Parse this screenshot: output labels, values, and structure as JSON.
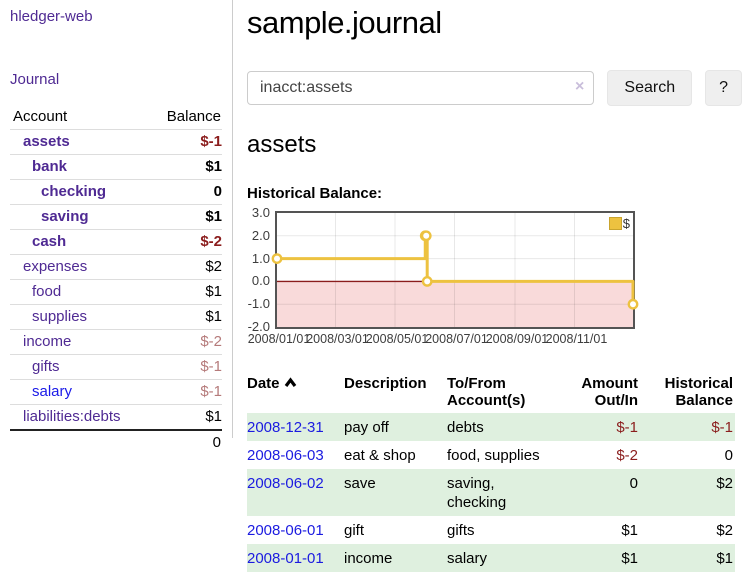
{
  "colors": {
    "link_purple": "#4f2a93",
    "link_blue": "#1a1ae8",
    "negative_red": "#8b1d1d",
    "muted_negative_rose": "#b57a7a",
    "row_stripe_green": "#dff0df",
    "chart_line_gold": "#edc240",
    "chart_negative_fill_pink": "#f9dada",
    "chart_zero_line_red": "#8b1d1d",
    "chart_border_gray": "#545454",
    "button_gray": "#efefef"
  },
  "sidebar": {
    "app_title": "hledger-web",
    "journal_link": "Journal",
    "accounts": {
      "headers": {
        "account": "Account",
        "balance": "Balance"
      },
      "rows": [
        {
          "name": "assets",
          "balance": "$-1",
          "indent": 1,
          "in_query": true,
          "balance_tone": "negative"
        },
        {
          "name": "bank",
          "balance": "$1",
          "indent": 2,
          "in_query": true,
          "balance_tone": "normal"
        },
        {
          "name": "checking",
          "balance": "0",
          "indent": 3,
          "in_query": true,
          "balance_tone": "normal"
        },
        {
          "name": "saving",
          "balance": "$1",
          "indent": 3,
          "in_query": true,
          "balance_tone": "normal"
        },
        {
          "name": "cash",
          "balance": "$-2",
          "indent": 2,
          "in_query": true,
          "balance_tone": "negative"
        },
        {
          "name": "expenses",
          "balance": "$2",
          "indent": 1,
          "in_query": false,
          "balance_tone": "normal"
        },
        {
          "name": "food",
          "balance": "$1",
          "indent": 2,
          "in_query": false,
          "balance_tone": "normal"
        },
        {
          "name": "supplies",
          "balance": "$1",
          "indent": 2,
          "in_query": false,
          "balance_tone": "normal"
        },
        {
          "name": "income",
          "balance": "$-2",
          "indent": 1,
          "in_query": false,
          "balance_tone": "muted-negative"
        },
        {
          "name": "gifts",
          "balance": "$-1",
          "indent": 2,
          "in_query": false,
          "balance_tone": "muted-negative"
        },
        {
          "name": "salary",
          "balance": "$-1",
          "indent": 2,
          "in_query": false,
          "balance_tone": "muted-negative",
          "link_tone": "unvisited"
        },
        {
          "name": "liabilities:debts",
          "balance": "$1",
          "indent": 1,
          "in_query": false,
          "balance_tone": "normal"
        }
      ],
      "total": "0"
    }
  },
  "main": {
    "title": "sample.journal",
    "search": {
      "value": "inacct:assets",
      "clear_icon": "×",
      "search_label": "Search",
      "help_label": "?"
    },
    "account_heading": "assets"
  },
  "chart_data": {
    "type": "line",
    "step": true,
    "title": "Historical Balance:",
    "legend": "$",
    "legend_position": "top-right",
    "grid": true,
    "negative_region_shaded": true,
    "x_start": "2008-01-01",
    "x_end": "2008-12-31",
    "ylim": [
      -2,
      3
    ],
    "y_ticks": [
      "3.0",
      "2.0",
      "1.0",
      "0.0",
      "-1.0",
      "-2.0"
    ],
    "x_ticks": [
      {
        "label": "2008/01/01",
        "date": "2008-01-01"
      },
      {
        "label": "2008/03/01",
        "date": "2008-03-01"
      },
      {
        "label": "2008/05/01",
        "date": "2008-05-01"
      },
      {
        "label": "2008/07/01",
        "date": "2008-07-01"
      },
      {
        "label": "2008/09/01",
        "date": "2008-09-01"
      },
      {
        "label": "2008/11/01",
        "date": "2008-11-01"
      }
    ],
    "points": [
      {
        "date": "2008-01-01",
        "value": 1
      },
      {
        "date": "2008-06-01",
        "value": 2
      },
      {
        "date": "2008-06-02",
        "value": 2
      },
      {
        "date": "2008-06-03",
        "value": 0
      },
      {
        "date": "2008-12-31",
        "value": -1
      }
    ]
  },
  "register": {
    "headers": {
      "date": "Date",
      "description": "Description",
      "accounts": "To/From Account(s)",
      "amount": "Amount Out/In",
      "balance": "Historical Balance"
    },
    "rows": [
      {
        "date": "2008-12-31",
        "description": "pay off",
        "accounts": "debts",
        "amount": "$-1",
        "balance": "$-1",
        "amount_negative": true,
        "balance_negative": true
      },
      {
        "date": "2008-06-03",
        "description": "eat & shop",
        "accounts": "food, supplies",
        "amount": "$-2",
        "balance": "0",
        "amount_negative": true,
        "balance_negative": false
      },
      {
        "date": "2008-06-02",
        "description": "save",
        "accounts": "saving, checking",
        "amount": "0",
        "balance": "$2",
        "amount_negative": false,
        "balance_negative": false
      },
      {
        "date": "2008-06-01",
        "description": "gift",
        "accounts": "gifts",
        "amount": "$1",
        "balance": "$2",
        "amount_negative": false,
        "balance_negative": false
      },
      {
        "date": "2008-01-01",
        "description": "income",
        "accounts": "salary",
        "amount": "$1",
        "balance": "$1",
        "amount_negative": false,
        "balance_negative": false
      }
    ]
  }
}
